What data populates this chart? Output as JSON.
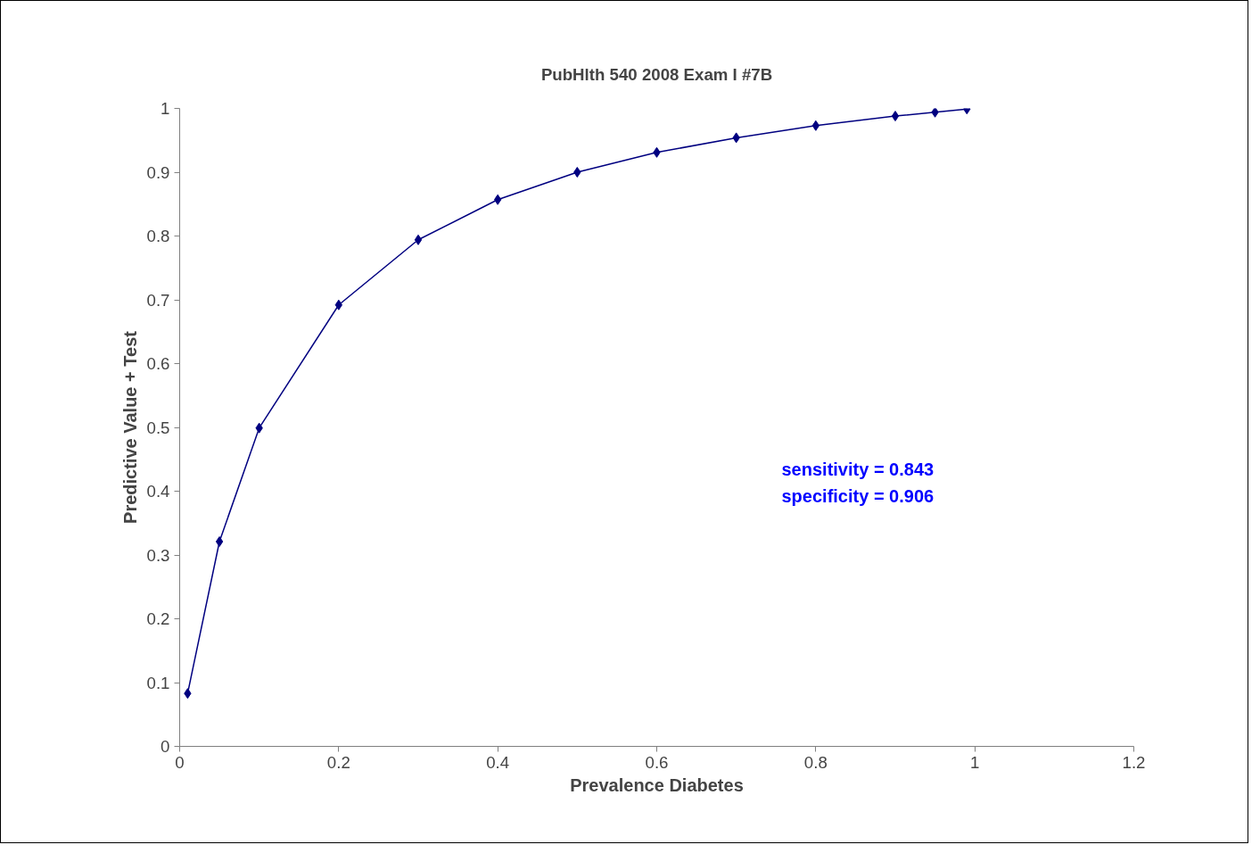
{
  "chart_data": {
    "type": "line",
    "title": "PubHlth 540 2008 Exam I #7B",
    "xlabel": "Prevalence Diabetes",
    "ylabel": "Predictive Value + Test",
    "x": [
      0.01,
      0.05,
      0.1,
      0.2,
      0.3,
      0.4,
      0.5,
      0.6,
      0.7,
      0.8,
      0.9,
      0.95,
      0.99
    ],
    "series": [
      {
        "color": "#000080",
        "values": [
          0.083,
          0.321,
          0.499,
          0.692,
          0.794,
          0.857,
          0.9,
          0.931,
          0.954,
          0.973,
          0.988,
          0.994,
          0.999
        ]
      }
    ],
    "xlim": [
      0,
      1.2
    ],
    "xticks": [
      0,
      0.2,
      0.4,
      0.6,
      0.8,
      1,
      1.2
    ],
    "ylim": [
      0,
      1
    ],
    "yticks": [
      0,
      0.1,
      0.2,
      0.3,
      0.4,
      0.5,
      0.6,
      0.7,
      0.8,
      0.9,
      1
    ],
    "annotations": [
      "sensitivity = 0.843",
      "specificity = 0.906"
    ],
    "marker": "diamond",
    "line_style": "solid",
    "grid": false
  }
}
